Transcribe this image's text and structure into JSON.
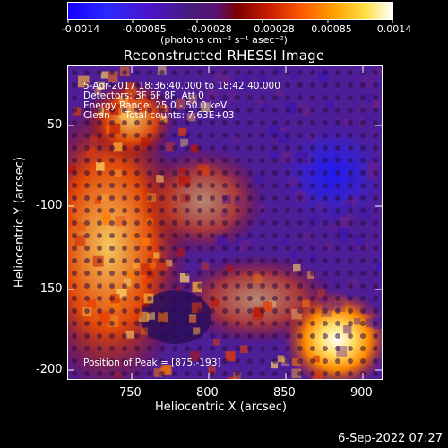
{
  "colorbar": {
    "tick_labels": [
      "-0.0014",
      "-0.00085",
      "-0.00028",
      "0.00028",
      "0.00085",
      "0.0014"
    ],
    "units": "(photons cm⁻² s⁻¹ asec⁻²)"
  },
  "title": "Reconstructed RHESSI Image",
  "info": {
    "time_range": "5-Apr-2017 18:36:40.000 to 18:42:40.000",
    "detectors": "Detectors: 3F 6F 8F, Att 0",
    "energy": "Energy Range: 25.0 - 50.0 keV",
    "clean": "Clean     Total counts: 7.63E+03",
    "peak": "Position of Peak = [875,-193]"
  },
  "axes": {
    "xlabel": "Heliocentric X (arcsec)",
    "ylabel": "Heliocentric Y (arcsec)",
    "xticks": [
      "750",
      "800",
      "850",
      "900"
    ],
    "yticks": [
      "-50",
      "-100",
      "-150",
      "-200"
    ]
  },
  "footer": "6-Sep-2022 07:27"
}
